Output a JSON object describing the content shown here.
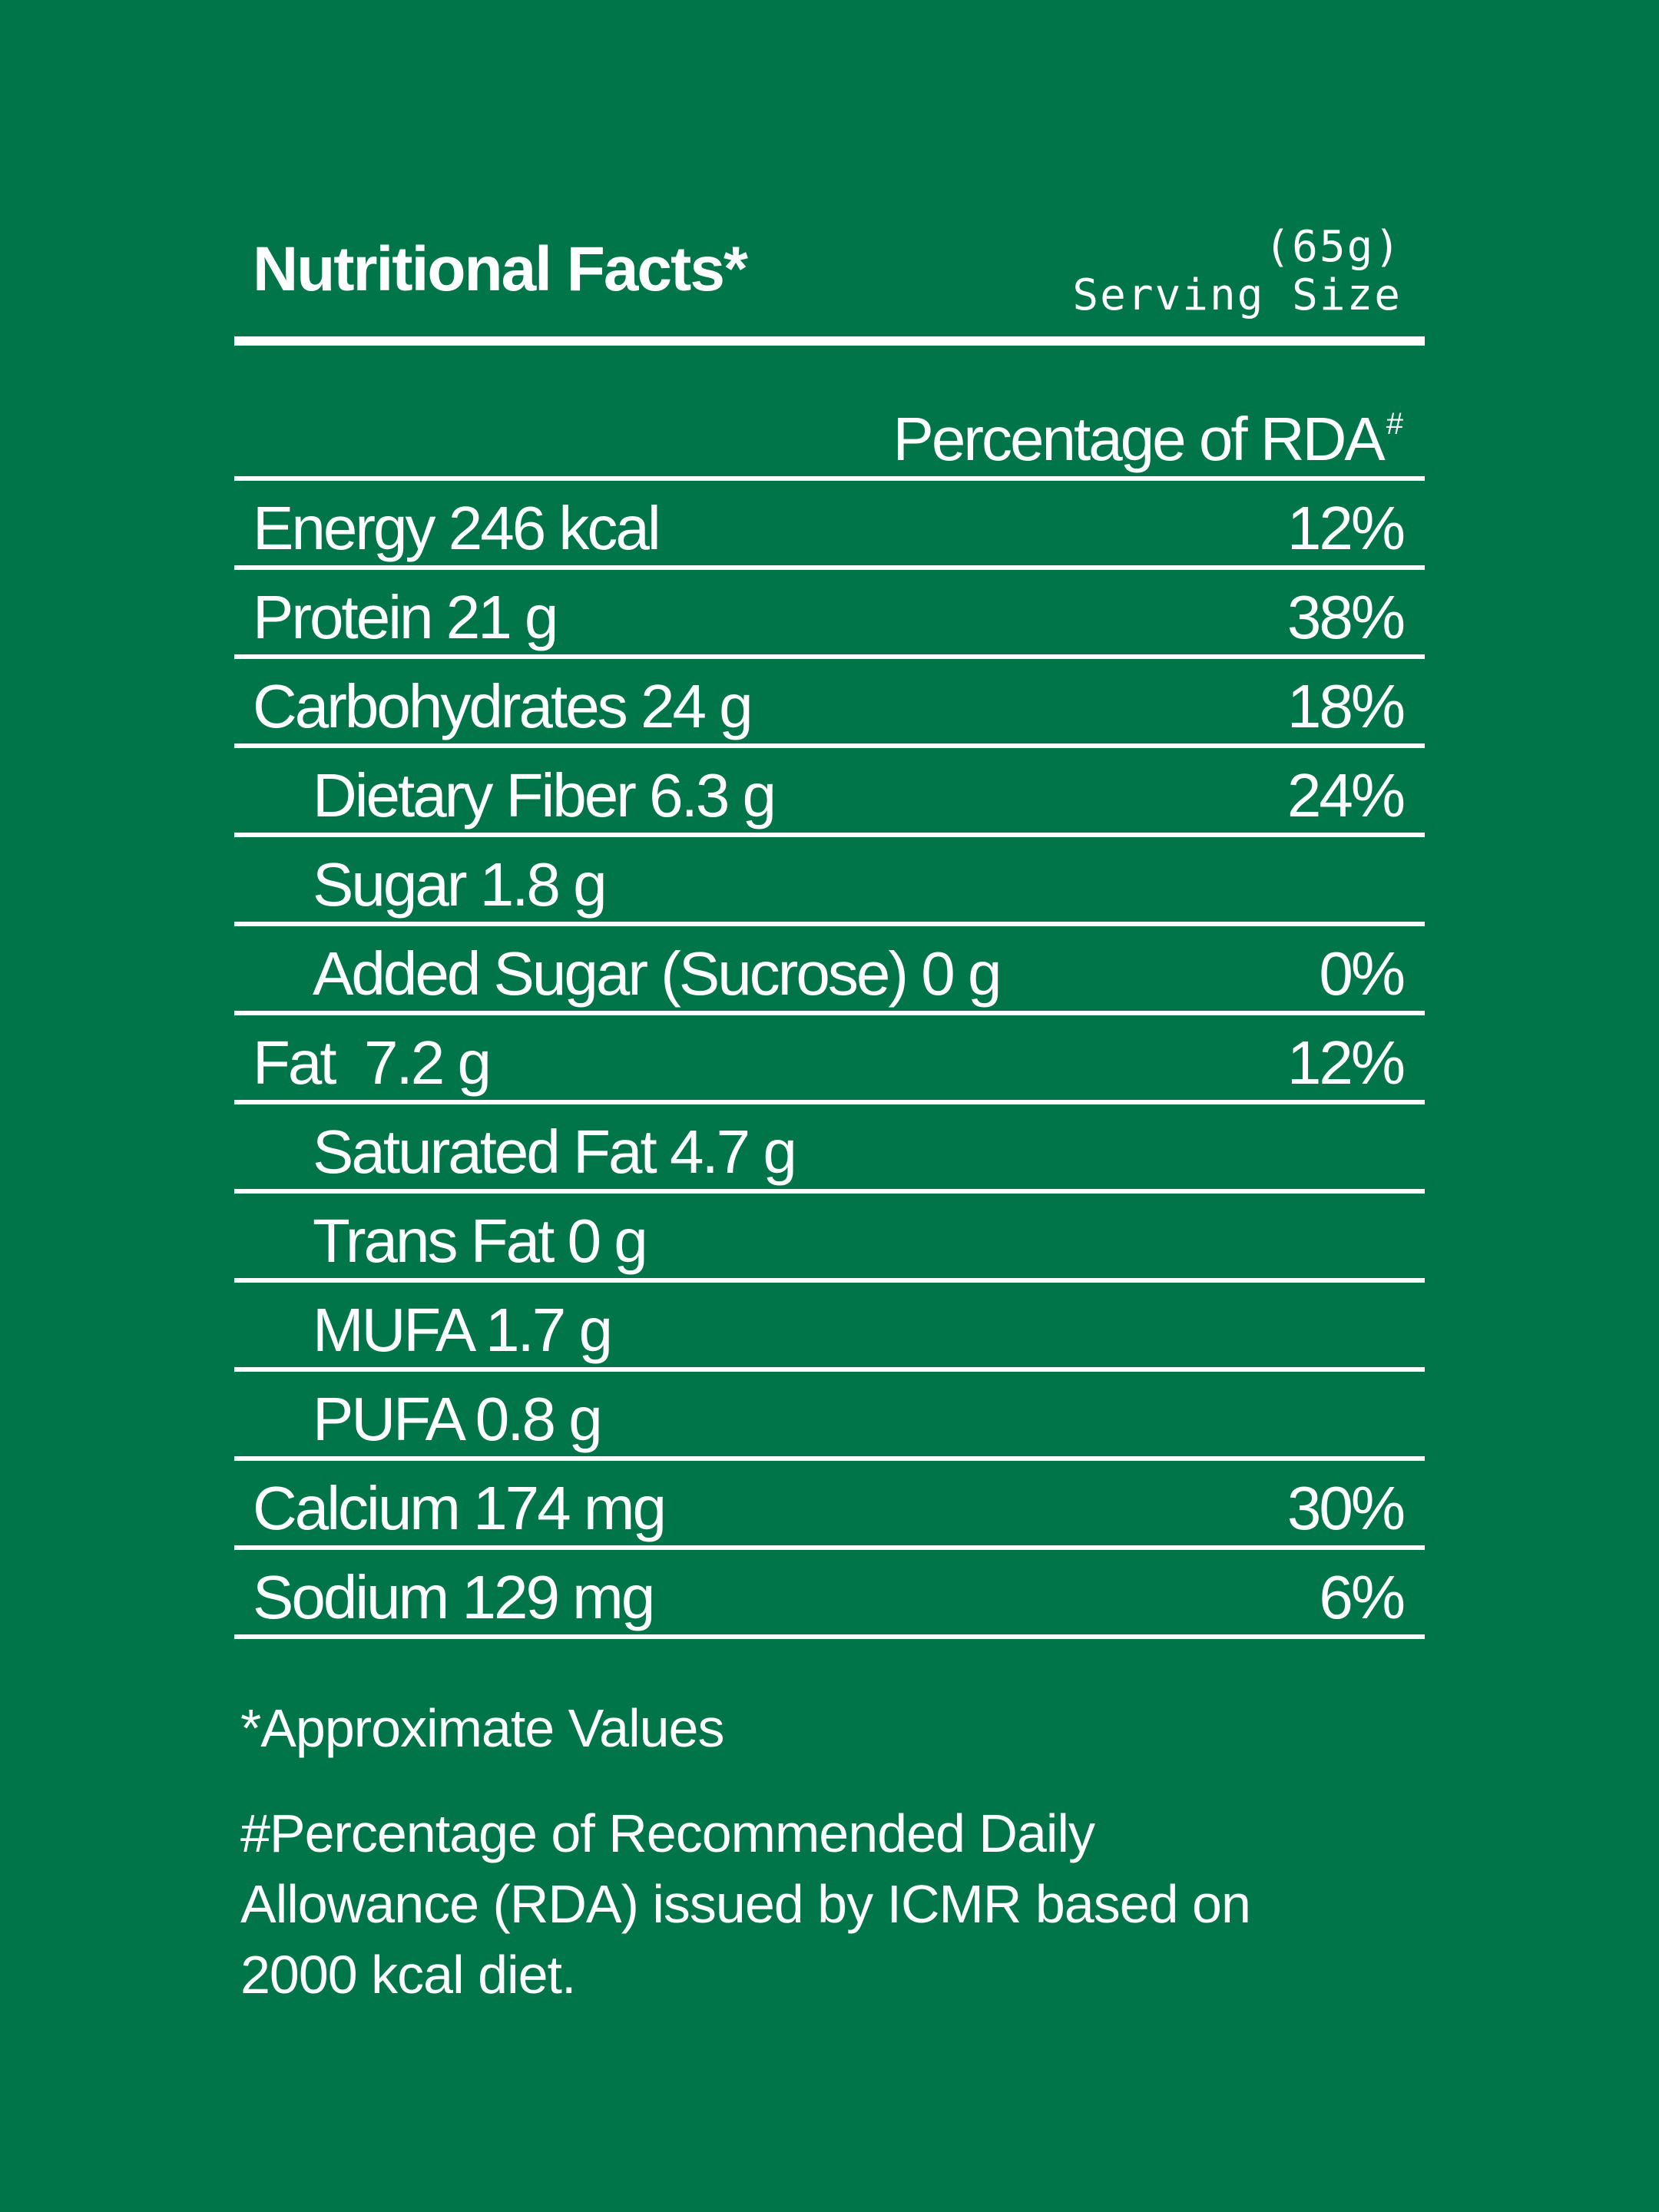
{
  "header": {
    "title": "Nutritional Facts*",
    "serving_amount": "(65g)",
    "serving_label": "Serving Size"
  },
  "column_header": {
    "label": "Percentage of RDA",
    "marker": "#"
  },
  "rows": [
    {
      "name": "Energy 246 kcal",
      "pct": "12%",
      "indent": false
    },
    {
      "name": "Protein 21 g",
      "pct": "38%",
      "indent": false
    },
    {
      "name": "Carbohydrates 24 g",
      "pct": "18%",
      "indent": false
    },
    {
      "name": "Dietary Fiber 6.3 g",
      "pct": "24%",
      "indent": true
    },
    {
      "name": "Sugar 1.8 g",
      "pct": "",
      "indent": true
    },
    {
      "name": "Added Sugar (Sucrose) 0 g",
      "pct": "0%",
      "indent": true
    },
    {
      "name": "Fat  7.2 g",
      "pct": "12%",
      "indent": false
    },
    {
      "name": "Saturated Fat 4.7 g",
      "pct": "",
      "indent": true
    },
    {
      "name": "Trans Fat 0 g",
      "pct": "",
      "indent": true
    },
    {
      "name": "MUFA 1.7 g",
      "pct": "",
      "indent": true
    },
    {
      "name": "PUFA 0.8 g",
      "pct": "",
      "indent": true
    },
    {
      "name": "Calcium 174 mg",
      "pct": "30%",
      "indent": false
    },
    {
      "name": "Sodium 129 mg",
      "pct": "6%",
      "indent": false
    }
  ],
  "footnotes": {
    "approx": "*Approximate Values",
    "rda_line1": "#Percentage of Recommended Daily",
    "rda_line2": "Allowance (RDA) issued by ICMR based on",
    "rda_line3": "2000 kcal diet."
  },
  "colors": {
    "background": "#00754a",
    "foreground": "#ffffff"
  }
}
